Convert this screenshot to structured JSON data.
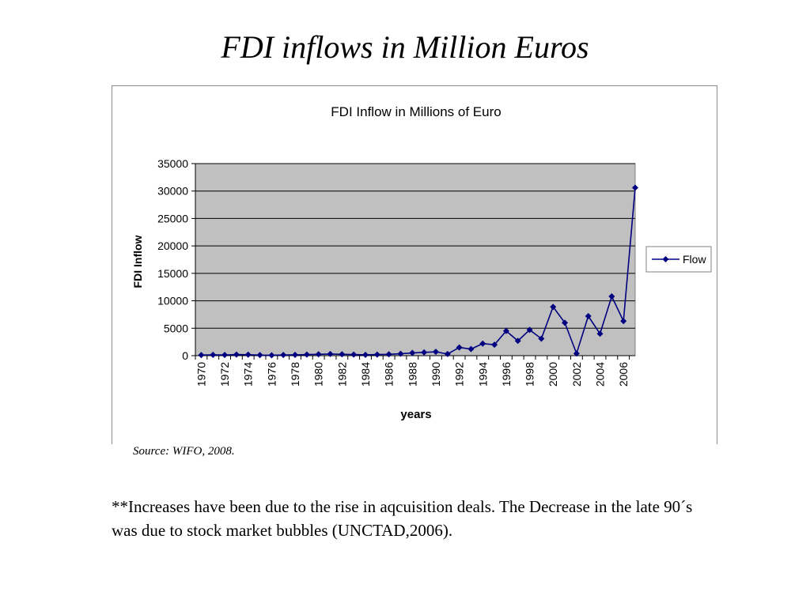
{
  "slide": {
    "title": "FDI inflows in Million Euros",
    "source": "Source: WIFO, 2008.",
    "note": "**Increases have been due to the rise in aqcuisition deals. The Decrease in the late 90´s was due to stock market bubbles (UNCTAD,2006)."
  },
  "chart_data": {
    "type": "line",
    "title": "FDI Inflow in Millions of Euro",
    "xlabel": "years",
    "ylabel": "FDI Inflow",
    "ylim": [
      0,
      35000
    ],
    "yticks": [
      0,
      5000,
      10000,
      15000,
      20000,
      25000,
      30000,
      35000
    ],
    "xtick_labels": [
      "1970",
      "1972",
      "1974",
      "1976",
      "1978",
      "1980",
      "1982",
      "1984",
      "1986",
      "1988",
      "1990",
      "1992",
      "1994",
      "1996",
      "1998",
      "2000",
      "2002",
      "2004",
      "2006"
    ],
    "grid": true,
    "legend_position": "right",
    "plot_background": "#c0c0c0",
    "line_color": "#000080",
    "series": [
      {
        "name": "Flow",
        "x": [
          1970,
          1971,
          1972,
          1973,
          1974,
          1975,
          1976,
          1977,
          1978,
          1979,
          1980,
          1981,
          1982,
          1983,
          1984,
          1985,
          1986,
          1987,
          1988,
          1989,
          1990,
          1991,
          1992,
          1993,
          1994,
          1995,
          1996,
          1997,
          1998,
          1999,
          2000,
          2001,
          2002,
          2003,
          2004,
          2005,
          2006,
          2007
        ],
        "values": [
          100,
          150,
          120,
          200,
          180,
          100,
          80,
          120,
          150,
          200,
          250,
          300,
          250,
          200,
          150,
          200,
          250,
          350,
          500,
          600,
          700,
          300,
          1500,
          1200,
          2200,
          2000,
          4500,
          2700,
          4700,
          3100,
          8900,
          6000,
          400,
          7200,
          4000,
          10800,
          6300,
          30600
        ]
      }
    ]
  }
}
